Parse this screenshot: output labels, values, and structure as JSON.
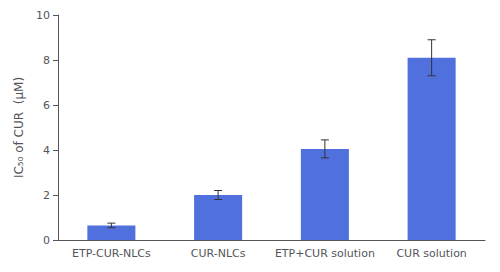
{
  "chart_data": {
    "type": "bar",
    "categories": [
      "ETP-CUR-NLCs",
      "CUR-NLCs",
      "ETP+CUR solution",
      "CUR solution"
    ],
    "values": [
      0.65,
      2.0,
      4.05,
      8.1
    ],
    "errors": [
      0.1,
      0.2,
      0.4,
      0.8
    ],
    "ylabel": "IC₅₀ of CUR  (μM)",
    "ylim": [
      0,
      10
    ],
    "yticks": [
      0,
      2,
      4,
      6,
      8,
      10
    ],
    "grid": false
  }
}
